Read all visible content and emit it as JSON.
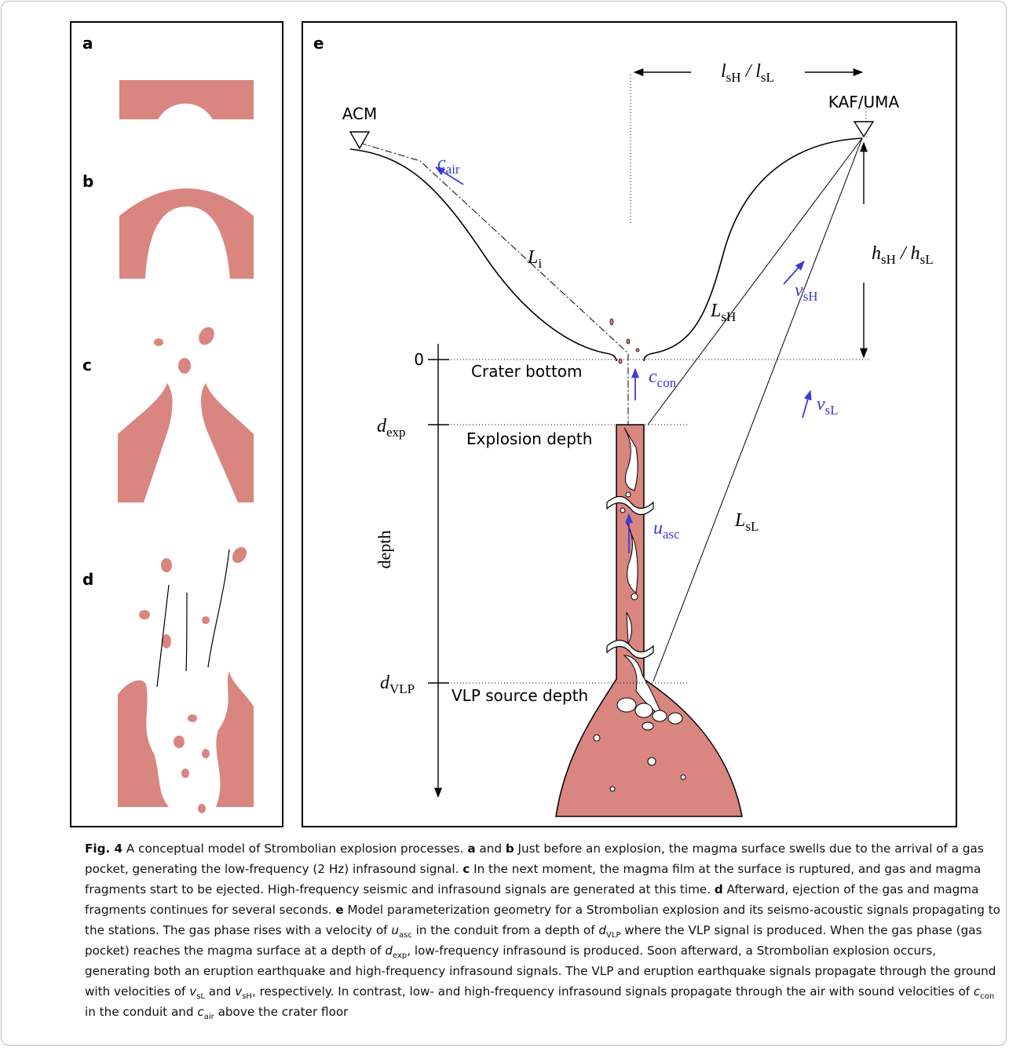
{
  "panels": {
    "a": {
      "label": "a"
    },
    "b": {
      "label": "b"
    },
    "c": {
      "label": "c"
    },
    "d": {
      "label": "d"
    },
    "e": {
      "label": "e",
      "stations": {
        "left": "ACM",
        "right": "KAF/UMA"
      },
      "symbols": {
        "l": {
          "parts": [
            {
              "base": "l",
              "sub": "sH"
            },
            {
              "base": " / l",
              "sub": "sL"
            }
          ]
        },
        "c_air": {
          "parts": [
            {
              "base": "c",
              "sub": "air"
            }
          ]
        },
        "L_i": {
          "parts": [
            {
              "base": "L",
              "sub": "i"
            }
          ]
        },
        "L_sH": {
          "parts": [
            {
              "base": "L",
              "sub": "sH"
            }
          ]
        },
        "v_sH": {
          "parts": [
            {
              "base": "v",
              "sub": "sH"
            }
          ]
        },
        "h": {
          "parts": [
            {
              "base": "h",
              "sub": "sH"
            },
            {
              "base": " / h",
              "sub": "sL"
            }
          ]
        },
        "c_con": {
          "parts": [
            {
              "base": "c",
              "sub": "con"
            }
          ]
        },
        "d_exp": {
          "parts": [
            {
              "base": "d",
              "sub": "exp"
            }
          ]
        },
        "v_sL": {
          "parts": [
            {
              "base": "v",
              "sub": "sL"
            }
          ]
        },
        "u_asc": {
          "parts": [
            {
              "base": "u",
              "sub": "asc"
            }
          ]
        },
        "L_sL": {
          "parts": [
            {
              "base": "L",
              "sub": "sL"
            }
          ]
        },
        "d_VLP": {
          "parts": [
            {
              "base": "d",
              "sub": "VLP"
            }
          ]
        }
      },
      "zero": "0",
      "crater_bottom": "Crater bottom",
      "explosion_depth": "Explosion depth",
      "vlp_source_depth": "VLP source depth",
      "depth_axis": "depth"
    }
  },
  "caption": [
    {
      "text": "Fig. 4",
      "style": "bold"
    },
    {
      "text": "  A conceptual model of Strombolian explosion processes. ",
      "style": null
    },
    {
      "text": "a",
      "style": "bold"
    },
    {
      "text": " and ",
      "style": null
    },
    {
      "text": "b",
      "style": "bold"
    },
    {
      "text": " Just before an explosion, the magma surface swells due to the arrival of a gas pocket, generating the low-frequency (2 Hz) infrasound signal. ",
      "style": null
    },
    {
      "text": "c",
      "style": "bold"
    },
    {
      "text": " In the next moment, the magma film at the surface is ruptured, and gas and magma fragments start to be ejected. High-frequency seismic and infrasound signals are generated at this time. ",
      "style": null
    },
    {
      "text": "d",
      "style": "bold"
    },
    {
      "text": " Afterward, ejection of the gas and magma fragments continues for several seconds. ",
      "style": null
    },
    {
      "text": "e",
      "style": "bold"
    },
    {
      "text": " Model parameterization geometry for a Strombolian explosion and its seismo-acoustic signals propagating to the stations. The gas phase rises with a velocity of ",
      "style": null
    },
    {
      "text": "u",
      "style": "italic"
    },
    {
      "text": "asc",
      "style": "sub"
    },
    {
      "text": " in the conduit from a depth of ",
      "style": null
    },
    {
      "text": "d",
      "style": "italic"
    },
    {
      "text": "VLP",
      "style": "sub"
    },
    {
      "text": " where the VLP signal is produced. When the gas phase (gas pocket) reaches the magma surface at a depth of ",
      "style": null
    },
    {
      "text": "d",
      "style": "italic"
    },
    {
      "text": "exp",
      "style": "sub"
    },
    {
      "text": ", low-frequency infrasound is produced. Soon afterward, a Strombolian explosion occurs, generating both an eruption earthquake and high-frequency infrasound signals. The VLP and eruption earthquake signals propagate through the ground with velocities of ",
      "style": null
    },
    {
      "text": "v",
      "style": "italic"
    },
    {
      "text": "sL",
      "style": "sub"
    },
    {
      "text": " and ",
      "style": null
    },
    {
      "text": "v",
      "style": "italic"
    },
    {
      "text": "sH",
      "style": "sub"
    },
    {
      "text": ", respectively. In contrast, low- and high-frequency infrasound signals propagate through the air with sound velocities of ",
      "style": null
    },
    {
      "text": "c",
      "style": "italic"
    },
    {
      "text": "con",
      "style": "sub"
    },
    {
      "text": " in the conduit and ",
      "style": null
    },
    {
      "text": "c",
      "style": "italic"
    },
    {
      "text": "air",
      "style": "sub"
    },
    {
      "text": " above the crater floor",
      "style": null
    }
  ]
}
